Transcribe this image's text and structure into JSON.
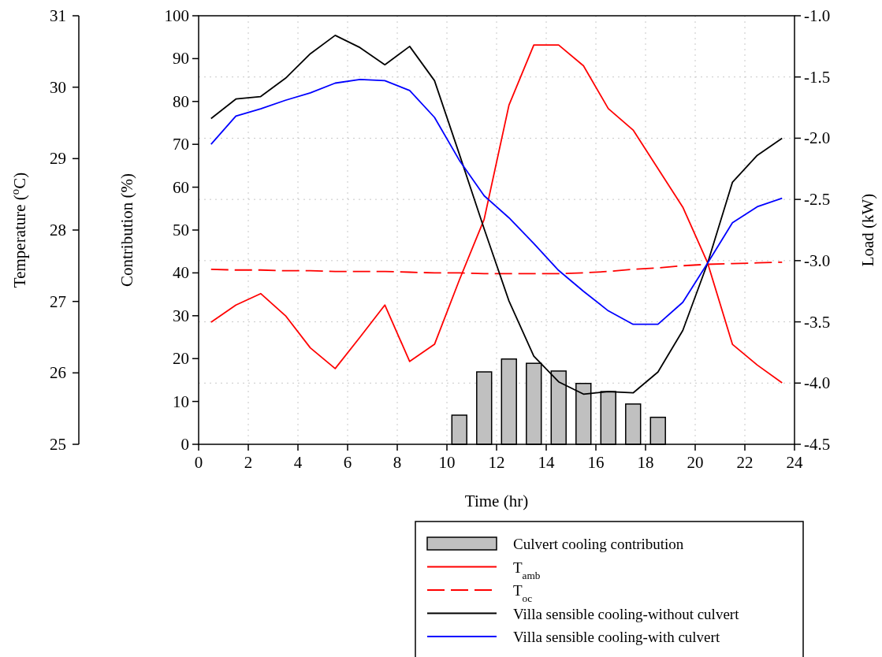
{
  "chart_data": {
    "type": "line",
    "xlabel": "Time (hr)",
    "ylabel": "Contribution (%)",
    "y2label": "Load (kW)",
    "y3label": "Temperature ($^{o}$C)",
    "xlim": [
      0,
      24
    ],
    "xticks": [
      0,
      2,
      4,
      6,
      8,
      10,
      12,
      14,
      16,
      18,
      20,
      22,
      24
    ],
    "ylim": [
      0,
      100
    ],
    "yticks": [
      0,
      10,
      20,
      30,
      40,
      50,
      60,
      70,
      80,
      90,
      100
    ],
    "y2lim": [
      -4.5,
      -1.0
    ],
    "y2ticks": [
      {
        "value": -4.5,
        "label": "-4.5"
      },
      {
        "value": -4,
        "label": "-4.0"
      },
      {
        "value": -3.5,
        "label": "-3.5"
      },
      {
        "value": -3,
        "label": "-3.0"
      },
      {
        "value": -2.5,
        "label": "-2.5"
      },
      {
        "value": -2,
        "label": "-2.0"
      },
      {
        "value": -1.5,
        "label": "-1.5"
      },
      {
        "value": -1,
        "label": "-1.0"
      }
    ],
    "y3lim": [
      25,
      31
    ],
    "y3ticks": [
      25,
      26,
      27,
      28,
      29,
      30,
      31
    ],
    "grid": true,
    "legend": "bottom right",
    "x": [
      0.5,
      1.5,
      2.5,
      3.5,
      4.5,
      5.5,
      6.5,
      7.5,
      8.5,
      9.5,
      10.5,
      11.5,
      12.5,
      13.5,
      14.5,
      15.5,
      16.5,
      17.5,
      18.5,
      19.5,
      20.5,
      21.5,
      22.5,
      23.5
    ],
    "series": [
      {
        "name": "Culvert cooling contribution",
        "type": "bar",
        "color": "#c0c0c0",
        "x": [
          10.5,
          11.5,
          12.5,
          13.5,
          14.5,
          15.5,
          16.5,
          17.5,
          18.5
        ],
        "values": [
          6.8,
          16.9,
          19.9,
          18.9,
          17.1,
          14.2,
          12.3,
          9.4,
          6.3
        ]
      },
      {
        "name": "T$_{amb}$",
        "axis": "y3",
        "color": "#ff0000",
        "line_style": "solid",
        "values": [
          26.71,
          26.95,
          27.11,
          26.8,
          26.35,
          26.06,
          26.5,
          26.95,
          26.16,
          26.4,
          27.3,
          28.15,
          29.75,
          30.59,
          30.59,
          30.3,
          29.7,
          29.4,
          28.86,
          28.32,
          27.54,
          26.4,
          26.11,
          25.86
        ]
      },
      {
        "name": "T$_{oc}$",
        "axis": "y3",
        "color": "#ff0000",
        "line_style": "dashed",
        "values": [
          27.45,
          27.44,
          27.44,
          27.43,
          27.43,
          27.42,
          27.42,
          27.42,
          27.41,
          27.4,
          27.4,
          27.39,
          27.39,
          27.39,
          27.39,
          27.4,
          27.42,
          27.45,
          27.47,
          27.5,
          27.52,
          27.53,
          27.54,
          27.55
        ]
      },
      {
        "name": "Villa sensible cooling-without culvert",
        "axis": "y2",
        "color": "#000000",
        "line_style": "solid",
        "values": [
          -1.84,
          -1.68,
          -1.66,
          -1.51,
          -1.31,
          -1.16,
          -1.26,
          -1.4,
          -1.25,
          -1.53,
          -2.13,
          -2.74,
          -3.33,
          -3.78,
          -3.99,
          -4.09,
          -4.07,
          -4.08,
          -3.91,
          -3.57,
          -3.02,
          -2.36,
          -2.14,
          -2.0
        ]
      },
      {
        "name": "Villa sensible cooling-with culvert",
        "axis": "y2",
        "color": "#0000ff",
        "line_style": "solid",
        "values": [
          -2.05,
          -1.82,
          -1.76,
          -1.69,
          -1.63,
          -1.55,
          -1.52,
          -1.53,
          -1.61,
          -1.83,
          -2.18,
          -2.47,
          -2.65,
          -2.86,
          -3.08,
          -3.25,
          -3.41,
          -3.52,
          -3.52,
          -3.34,
          -3.02,
          -2.69,
          -2.56,
          -2.49
        ]
      }
    ]
  }
}
